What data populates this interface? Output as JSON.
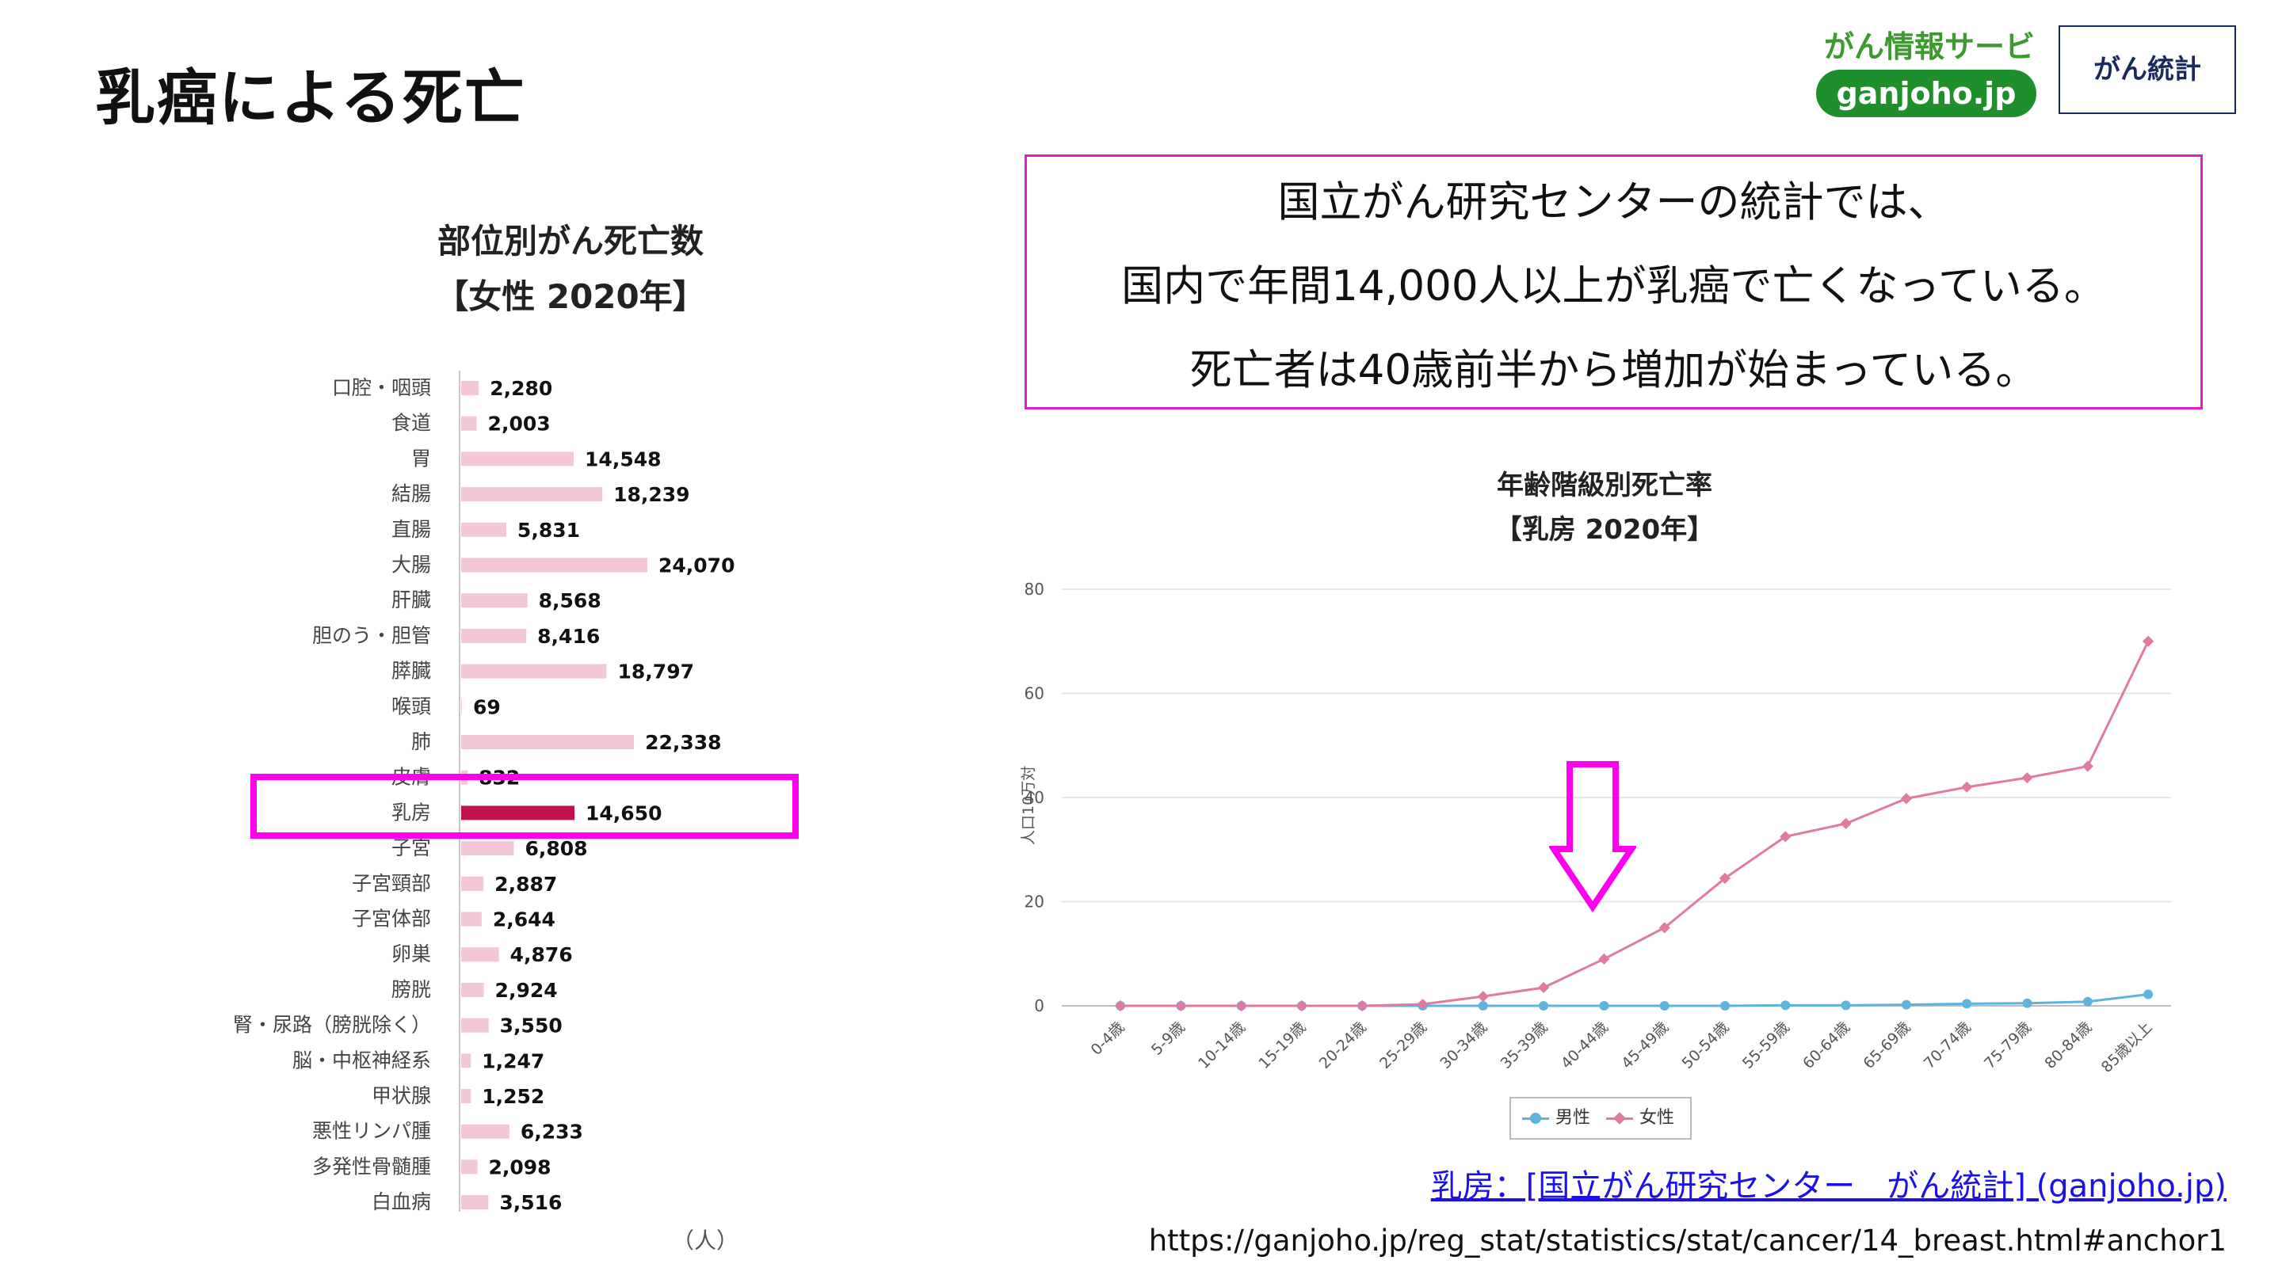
{
  "slide": {
    "title": "乳癌による死亡"
  },
  "brand": {
    "service_name": "がん情報サービス",
    "domain_label": "ganjoho.jp",
    "stats_button": "がん統計"
  },
  "summary": {
    "lines": [
      "国立がん研究センターの統計では、",
      "国内で年間14,000人以上が乳癌で亡くなっている。",
      "死亡者は40歳前半から増加が始まっている。"
    ]
  },
  "bar_chart_titles": {
    "title": "部位別がん死亡数",
    "subtitle": "【女性 2020年】",
    "unit": "（人）"
  },
  "line_chart_titles": {
    "title": "年齢階級別死亡率",
    "subtitle": "【乳房 2020年】"
  },
  "source": {
    "link_text": "乳房：[国立がん研究センター　がん統計] (ganjoho.jp)",
    "url": "https://ganjoho.jp/reg_stat/statistics/stat/cancer/14_breast.html#anchor1"
  },
  "colors": {
    "bar_default": "#f3c7d5",
    "bar_highlight": "#c0134c",
    "female_line": "#e07aa2",
    "male_line": "#5fb4de",
    "highlight_border": "#ff00ee",
    "brand_green": "#1f8f2c"
  },
  "chart_data": [
    {
      "type": "bar",
      "orientation": "horizontal",
      "title": "部位別がん死亡数",
      "subtitle": "【女性 2020年】",
      "unit": "（人）",
      "highlighted_category": "乳房",
      "categories": [
        "口腔・咽頭",
        "食道",
        "胃",
        "結腸",
        "直腸",
        "大腸",
        "肝臓",
        "胆のう・胆管",
        "膵臓",
        "喉頭",
        "肺",
        "皮膚",
        "乳房",
        "子宮",
        "子宮頸部",
        "子宮体部",
        "卵巣",
        "膀胱",
        "腎・尿路（膀胱除く）",
        "脳・中枢神経系",
        "甲状腺",
        "悪性リンパ腫",
        "多発性骨髄腫",
        "白血病"
      ],
      "values": [
        2280,
        2003,
        14548,
        18239,
        5831,
        24070,
        8568,
        8416,
        18797,
        69,
        22338,
        832,
        14650,
        6808,
        2887,
        2644,
        4876,
        2924,
        3550,
        1247,
        1252,
        6233,
        2098,
        3516
      ],
      "value_labels": [
        "2,280",
        "2,003",
        "14,548",
        "18,239",
        "5,831",
        "24,070",
        "8,568",
        "8,416",
        "18,797",
        "69",
        "22,338",
        "832",
        "14,650",
        "6,808",
        "2,887",
        "2,644",
        "4,876",
        "2,924",
        "3,550",
        "1,247",
        "1,252",
        "6,233",
        "2,098",
        "3,516"
      ]
    },
    {
      "type": "line",
      "title": "年齢階級別死亡率",
      "subtitle": "【乳房 2020年】",
      "ylabel": "人口10万対",
      "ylim": [
        0,
        80
      ],
      "yticks": [
        "0",
        "20",
        "40",
        "60",
        "80"
      ],
      "grid": true,
      "legend_position": "bottom",
      "categories": [
        "0-4歳",
        "5-9歳",
        "10-14歳",
        "15-19歳",
        "20-24歳",
        "25-29歳",
        "30-34歳",
        "35-39歳",
        "40-44歳",
        "45-49歳",
        "50-54歳",
        "55-59歳",
        "60-64歳",
        "65-69歳",
        "70-74歳",
        "75-79歳",
        "80-84歳",
        "85歳以上"
      ],
      "series": [
        {
          "name": "男性",
          "values": [
            0,
            0,
            0,
            0,
            0,
            0,
            0,
            0,
            0,
            0,
            0,
            0.1,
            0.1,
            0.2,
            0.4,
            0.5,
            0.8,
            2.2
          ]
        },
        {
          "name": "女性",
          "values": [
            0,
            0,
            0,
            0,
            0,
            0.3,
            1.8,
            3.5,
            9,
            15,
            24.5,
            32.5,
            35,
            39.8,
            42,
            43.8,
            46,
            70
          ]
        }
      ]
    }
  ]
}
